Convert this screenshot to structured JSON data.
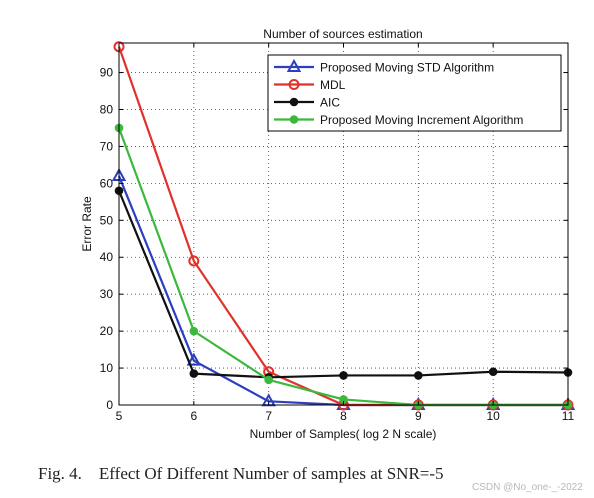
{
  "chart_data": {
    "type": "line",
    "title": "Number of sources estimation",
    "xlabel": "Number of Samples( log 2 N scale)",
    "ylabel": "Error Rate",
    "x": [
      5,
      6,
      7,
      8,
      9,
      10,
      11
    ],
    "xlim": [
      5,
      11
    ],
    "ylim": [
      0,
      98
    ],
    "xticks": [
      5,
      6,
      7,
      8,
      9,
      10,
      11
    ],
    "yticks": [
      0,
      10,
      20,
      30,
      40,
      50,
      60,
      70,
      80,
      90
    ],
    "grid": true,
    "legend_position": "top-right",
    "series": [
      {
        "name": "Proposed Moving STD Algorithm",
        "color": "#2b3fbf",
        "marker": "triangle",
        "values": [
          62,
          12,
          1,
          0,
          0,
          0,
          0
        ]
      },
      {
        "name": "MDL",
        "color": "#e0312a",
        "marker": "circle",
        "values": [
          97,
          39,
          9,
          0,
          0,
          0,
          0
        ]
      },
      {
        "name": "AIC",
        "color": "#111111",
        "marker": "dot",
        "values": [
          58,
          8.5,
          7.5,
          8,
          8,
          9,
          8.8
        ]
      },
      {
        "name": "Proposed Moving Increment Algorithm",
        "color": "#3cb83c",
        "marker": "dot",
        "values": [
          75,
          20,
          6.8,
          1.5,
          0,
          0,
          0
        ]
      }
    ]
  },
  "caption": "Fig. 4.    Effect Of Different Number of samples at SNR=-5",
  "watermark": "CSDN @No_one-_-2022"
}
